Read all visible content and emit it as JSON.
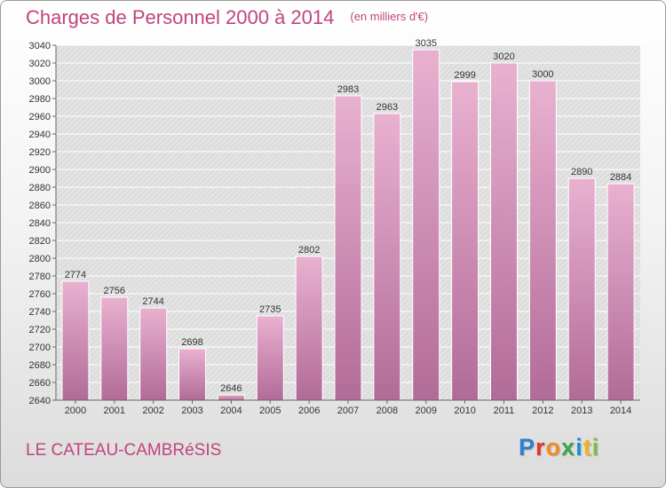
{
  "title": "Charges de Personnel 2000 à 2014",
  "subtitle": "(en milliers d'€)",
  "commune": "LE CATEAU-CAMBRéSIS",
  "brand": {
    "letters": [
      "P",
      "r",
      "o",
      "x",
      "i",
      "t",
      "i"
    ],
    "colors": [
      "#2e7fd0",
      "#e0342c",
      "#f28c1e",
      "#38a84a",
      "#1e8fd6",
      "#f0b41e",
      "#7ac142"
    ]
  },
  "colors": {
    "accent": "#c0447e",
    "bar_top": "#e9b1d0",
    "bar_bottom": "#b26b98",
    "plot_bg": "#e3e3e3"
  },
  "chart_data": {
    "type": "bar",
    "title": "Charges de Personnel 2000 à 2014",
    "subtitle": "(en milliers d'€)",
    "categories": [
      "2000",
      "2001",
      "2002",
      "2003",
      "2004",
      "2005",
      "2006",
      "2007",
      "2008",
      "2009",
      "2010",
      "2011",
      "2012",
      "2013",
      "2014"
    ],
    "values": [
      2774,
      2756,
      2744,
      2698,
      2646,
      2735,
      2802,
      2983,
      2963,
      3035,
      2999,
      3020,
      3000,
      2890,
      2884
    ],
    "ylim": [
      2640,
      3040
    ],
    "yticks": [
      2640,
      2660,
      2680,
      2700,
      2720,
      2740,
      2760,
      2780,
      2800,
      2820,
      2840,
      2860,
      2880,
      2900,
      2920,
      2940,
      2960,
      2980,
      3000,
      3020,
      3040
    ],
    "grid": true,
    "legend": "none"
  }
}
